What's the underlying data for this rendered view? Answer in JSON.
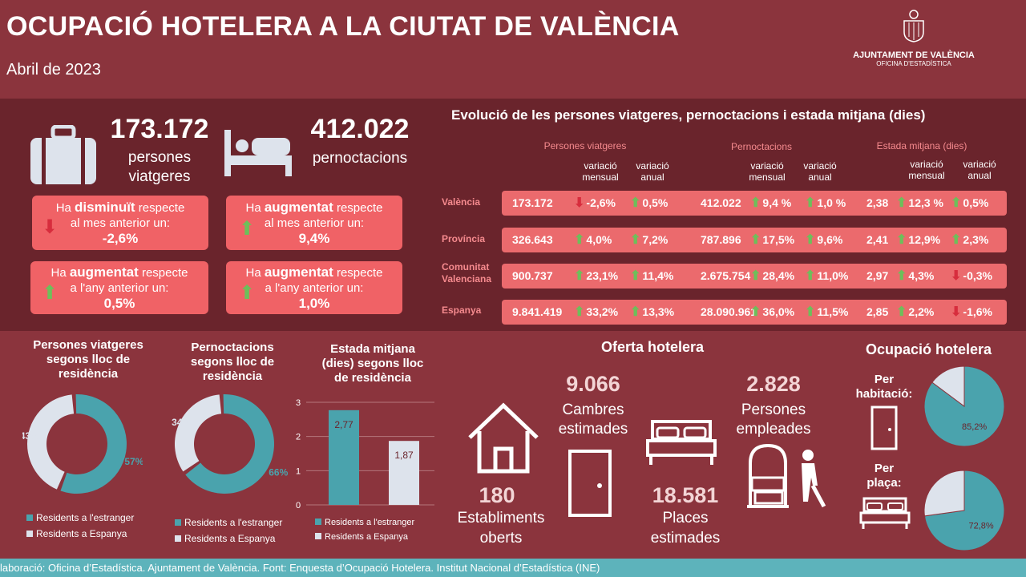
{
  "header": {
    "title": "OCUPACIÓ HOTELERA A LA CIUTAT DE VALÈNCIA",
    "subtitle": "Abril de 2023",
    "logo_line1": "AJUNTAMENT DE VALÈNCIA",
    "logo_line2": "OFICINA D'ESTADÍSTICA"
  },
  "summary": {
    "travelers_value": "173.172",
    "travelers_label1": "persones",
    "travelers_label2": "viatgeres",
    "nights_value": "412.022",
    "nights_label": "pernoctacions",
    "cards": [
      {
        "pre": "Ha ",
        "bold": "disminuït",
        "post": " respecte",
        "line2": "al mes anterior un:",
        "value": "-2,6%",
        "dir": "down"
      },
      {
        "pre": "Ha ",
        "bold": "augmentat",
        "post": " respecte",
        "line2": "al mes anterior un:",
        "value": "9,4%",
        "dir": "up"
      },
      {
        "pre": "Ha ",
        "bold": "augmentat",
        "post": " respecte",
        "line2": "a l'any anterior un:",
        "value": "0,5%",
        "dir": "up"
      },
      {
        "pre": "Ha ",
        "bold": "augmentat",
        "post": " respecte",
        "line2": "a l'any anterior un:",
        "value": "1,0%",
        "dir": "up"
      }
    ]
  },
  "table": {
    "title": "Evolució de les persones viatgeres, pernoctacions i estada mitjana (dies)",
    "groups": [
      "Persones viatgeres",
      "Pernoctacions",
      "Estada mitjana (dies)"
    ],
    "sub_monthly": [
      "variació",
      "mensual"
    ],
    "sub_annual": [
      "variació",
      "anual"
    ],
    "rows": [
      {
        "label": "València",
        "label2": "",
        "c": [
          {
            "v": "173.172"
          },
          {
            "v": "-2,6%",
            "d": "down"
          },
          {
            "v": "0,5%",
            "d": "up"
          },
          {
            "v": "412.022"
          },
          {
            "v": "9,4 %",
            "d": "up"
          },
          {
            "v": "1,0 %",
            "d": "up"
          },
          {
            "v": "2,38"
          },
          {
            "v": "12,3  %",
            "d": "up"
          },
          {
            "v": "0,5%",
            "d": "up"
          }
        ]
      },
      {
        "label": "Província",
        "label2": "",
        "c": [
          {
            "v": "326.643"
          },
          {
            "v": "4,0%",
            "d": "up"
          },
          {
            "v": "7,2%",
            "d": "up"
          },
          {
            "v": "787.896"
          },
          {
            "v": "17,5%",
            "d": "up"
          },
          {
            "v": "9,6%",
            "d": "up"
          },
          {
            "v": "2,41"
          },
          {
            "v": "12,9%",
            "d": "up"
          },
          {
            "v": "2,3%",
            "d": "up"
          }
        ]
      },
      {
        "label": "Comunitat",
        "label2": "Valenciana",
        "c": [
          {
            "v": "900.737"
          },
          {
            "v": "23,1%",
            "d": "up"
          },
          {
            "v": "11,4%",
            "d": "up"
          },
          {
            "v": "2.675.754"
          },
          {
            "v": "28,4%",
            "d": "up"
          },
          {
            "v": "11,0%",
            "d": "up"
          },
          {
            "v": "2,97"
          },
          {
            "v": "4,3%",
            "d": "up"
          },
          {
            "v": "-0,3%",
            "d": "down"
          }
        ]
      },
      {
        "label": "Espanya",
        "label2": "",
        "c": [
          {
            "v": "9.841.419"
          },
          {
            "v": "33,2%",
            "d": "up"
          },
          {
            "v": "13,3%",
            "d": "up"
          },
          {
            "v": "28.090.961"
          },
          {
            "v": "36,0%",
            "d": "up"
          },
          {
            "v": "11,5%",
            "d": "up"
          },
          {
            "v": "2,85"
          },
          {
            "v": "2,2%",
            "d": "up"
          },
          {
            "v": "-1,6%",
            "d": "down"
          }
        ]
      }
    ]
  },
  "charts_titles": {
    "donut1": [
      "Persones viatgeres",
      "segons lloc de",
      "residència"
    ],
    "donut2": [
      "Pernoctacions",
      "segons lloc de",
      "residència"
    ],
    "bar": [
      "Estada mitjana",
      "(dies) segons lloc",
      "de residència"
    ]
  },
  "legend": {
    "foreign": "Residents a l'estranger",
    "spain": "Residents a Espanya"
  },
  "colors": {
    "teal": "#4aa3ad",
    "grey": "#dde3ec",
    "bg": "#8b343d",
    "card": "#f06266",
    "up": "#6dbf5a",
    "down": "#d72d3d"
  },
  "chart_data": [
    {
      "type": "pie",
      "title": "Persones viatgeres segons lloc de residència",
      "labels": [
        "Residents a l'estranger",
        "Residents a Espanya"
      ],
      "values": [
        57,
        43
      ],
      "value_labels": [
        "57%",
        "43%"
      ]
    },
    {
      "type": "pie",
      "title": "Pernoctacions segons lloc de residència",
      "labels": [
        "Residents a l'estranger",
        "Residents a Espanya"
      ],
      "values": [
        66,
        34
      ],
      "value_labels": [
        "66%",
        "34%"
      ]
    },
    {
      "type": "bar",
      "title": "Estada mitjana (dies) segons lloc de residència",
      "categories": [
        "Residents a l'estranger",
        "Residents a Espanya"
      ],
      "values": [
        2.77,
        1.87
      ],
      "value_labels": [
        "2,77",
        "1,87"
      ],
      "yticks": [
        "0",
        "1",
        "2",
        "3"
      ],
      "ylim": [
        0,
        3
      ]
    },
    {
      "type": "pie",
      "title": "Per habitació:",
      "values": [
        85.2,
        14.8
      ],
      "value_labels": [
        "85,2%"
      ]
    },
    {
      "type": "pie",
      "title": "Per plaça:",
      "values": [
        72.8,
        27.2
      ],
      "value_labels": [
        "72,8%"
      ]
    }
  ],
  "offer": {
    "title": "Oferta hotelera",
    "rooms_value": "9.066",
    "rooms_l1": "Cambres",
    "rooms_l2": "estimades",
    "staff_value": "2.828",
    "staff_l1": "Persones",
    "staff_l2": "empleades",
    "estab_value": "180",
    "estab_l1": "Establiments",
    "estab_l2": "oberts",
    "places_value": "18.581",
    "places_l1": "Places",
    "places_l2": "estimades"
  },
  "occupancy": {
    "title": "Ocupació hotelera",
    "room_l1": "Per",
    "room_l2": "habitació:",
    "place_l1": "Per",
    "place_l2": "plaça:"
  },
  "footer": "laboració: Oficina d’Estadística. Ajuntament de València. Font: Enquesta d’Ocupació Hotelera. Institut Nacional d’Estadística (INE)"
}
